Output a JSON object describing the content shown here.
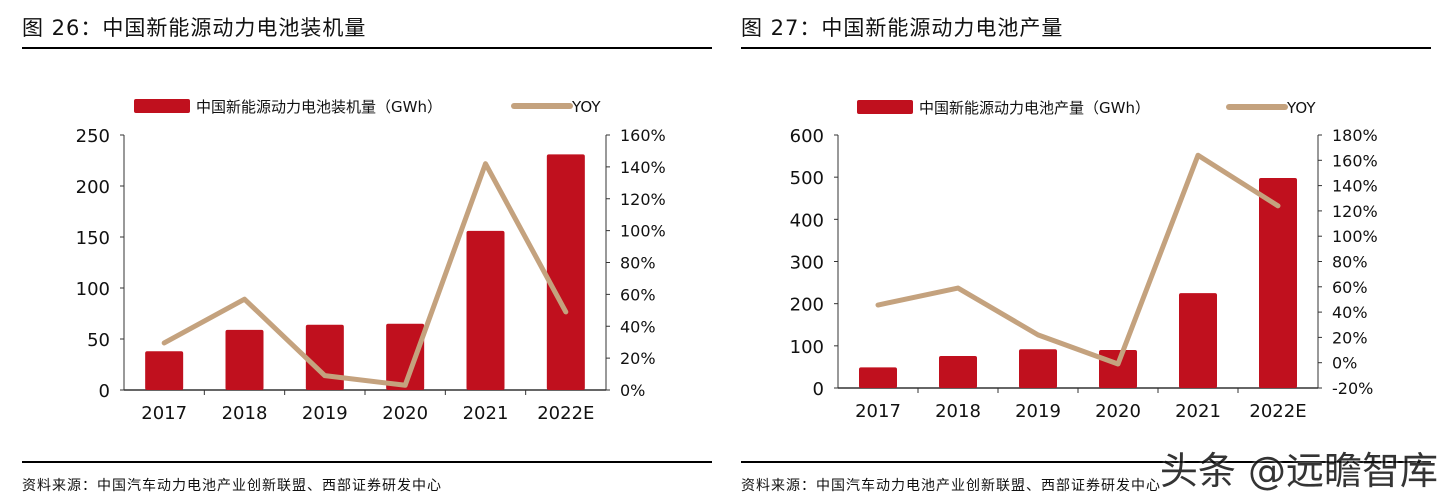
{
  "chart_data": [
    {
      "type": "bar",
      "figure_title": "图 26：中国新能源动力电池装机量",
      "categories": [
        "2017",
        "2018",
        "2019",
        "2020",
        "2021",
        "2022E"
      ],
      "series": [
        {
          "name": "中国新能源动力电池装机量（GWh）",
          "type": "bar",
          "axis": "left",
          "color": "#C0101E",
          "values": [
            38,
            59,
            64,
            65,
            156,
            231
          ]
        },
        {
          "name": "YOY",
          "type": "line",
          "axis": "right",
          "color": "#C4A27E",
          "values": [
            29.5,
            57,
            9,
            3,
            142,
            49
          ]
        }
      ],
      "left_axis": {
        "ylim": [
          0,
          250
        ],
        "ticks": [
          "0",
          "50",
          "100",
          "150",
          "200",
          "250"
        ]
      },
      "right_axis": {
        "ylim": [
          0,
          160
        ],
        "ticks": [
          "0%",
          "20%",
          "40%",
          "60%",
          "80%",
          "100%",
          "120%",
          "140%",
          "160%"
        ]
      },
      "legend": "top",
      "grid": false,
      "source": "资料来源：中国汽车动力电池产业创新联盟、西部证券研发中心"
    },
    {
      "type": "bar",
      "figure_title": "图 27：中国新能源动力电池产量",
      "categories": [
        "2017",
        "2018",
        "2019",
        "2020",
        "2021",
        "2022E"
      ],
      "series": [
        {
          "name": "中国新能源动力电池产量（GWh）",
          "type": "bar",
          "axis": "left",
          "color": "#C0101E",
          "values": [
            49,
            76,
            92,
            90,
            225,
            498
          ]
        },
        {
          "name": "YOY",
          "type": "line",
          "axis": "right",
          "color": "#C4A27E",
          "values": [
            45.6,
            59,
            22,
            -1,
            164,
            124
          ]
        }
      ],
      "left_axis": {
        "ylim": [
          0,
          600
        ],
        "ticks": [
          "0",
          "100",
          "200",
          "300",
          "400",
          "500",
          "600"
        ]
      },
      "right_axis": {
        "ylim": [
          -20,
          180
        ],
        "ticks": [
          "-20%",
          "0%",
          "20%",
          "40%",
          "60%",
          "80%",
          "100%",
          "120%",
          "140%",
          "160%",
          "180%"
        ]
      },
      "legend": "top",
      "grid": false,
      "source": "资料来源：中国汽车动力电池产业创新联盟、西部证券研发中心"
    }
  ],
  "watermark": "头条 @远瞻智库"
}
